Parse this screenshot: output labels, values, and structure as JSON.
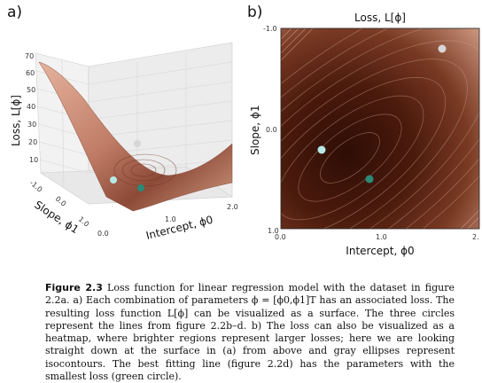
{
  "panel_a": {
    "label": "a)",
    "z_label": "Loss, L[ϕ]",
    "x_label": "Intercept, ϕ0",
    "y_label": "Slope, ϕ1",
    "z_ticks": [
      "70",
      "60",
      "50",
      "40",
      "30",
      "20",
      "10"
    ],
    "x_ticks": [
      "0.0",
      "1.0",
      "2.0"
    ],
    "y_ticks": [
      "1.0",
      "0.0",
      "-1.0"
    ],
    "surface_color": "#c98670",
    "points": [
      {
        "name": "gray-circle",
        "color": "#d6d6d6"
      },
      {
        "name": "cyan-circle",
        "color": "#b7e8e8"
      },
      {
        "name": "green-circle",
        "color": "#2a8a78"
      }
    ]
  },
  "panel_b": {
    "label": "b)",
    "title": "Loss, L[ϕ]",
    "x_label": "Intercept, ϕ0",
    "y_label": "Slope, ϕ1",
    "x_ticks": [
      "0.0",
      "1.0",
      "2."
    ],
    "y_ticks": [
      "-1.0",
      "0.0",
      "1.0"
    ],
    "heat_dark": "#3a1208",
    "heat_light": "#d8a48c",
    "points": [
      {
        "name": "gray-circle",
        "color": "#d6d6d6"
      },
      {
        "name": "cyan-circle",
        "color": "#b7e8e8"
      },
      {
        "name": "green-circle",
        "color": "#2a8a78"
      }
    ]
  },
  "caption": {
    "figure_label": "Figure 2.3",
    "title": "Loss function for linear regression model with the dataset in figure 2.2a.",
    "body": "a) Each combination of parameters ϕ = [ϕ0,ϕ1]T has an associated loss. The resulting loss function L[ϕ] can be visualized as a surface. The three circles represent the lines from figure 2.2b–d. b) The loss can also be visualized as a heatmap, where brighter regions represent larger losses; here we are looking straight down at the surface in (a) from above and gray ellipses represent isocontours. The best fitting line (figure 2.2d) has the parameters with the smallest loss (green circle)."
  }
}
